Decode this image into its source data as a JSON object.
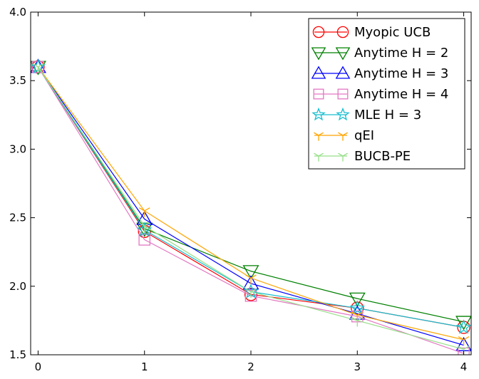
{
  "chart_data": {
    "type": "line",
    "title": "",
    "xlabel": "",
    "ylabel": "",
    "x": [
      0,
      1,
      2,
      3,
      4
    ],
    "xlim": [
      -0.07,
      4.07
    ],
    "ylim": [
      1.5,
      4.0
    ],
    "xticks": [
      "0",
      "1",
      "2",
      "3",
      "4"
    ],
    "yticks": [
      "1.5",
      "2.0",
      "2.5",
      "3.0",
      "3.5",
      "4.0"
    ],
    "grid": false,
    "legend_position": "top-right",
    "series": [
      {
        "name": "Myopic UCB",
        "color": "#ff0000",
        "marker": "circle",
        "values": [
          3.6,
          2.4,
          1.94,
          1.84,
          1.7
        ]
      },
      {
        "name": "Anytime H = 2",
        "color": "#008000",
        "marker": "triangle-down",
        "values": [
          3.6,
          2.42,
          2.11,
          1.91,
          1.74
        ]
      },
      {
        "name": "Anytime H = 3",
        "color": "#0000ff",
        "marker": "triangle-up",
        "values": [
          3.6,
          2.49,
          2.02,
          1.8,
          1.57
        ]
      },
      {
        "name": "Anytime H = 4",
        "color": "#e377c2",
        "marker": "square",
        "values": [
          3.6,
          2.34,
          1.93,
          1.78,
          1.51
        ]
      },
      {
        "name": "MLE H = 3",
        "color": "#17becf",
        "marker": "star",
        "values": [
          3.6,
          2.41,
          1.96,
          1.84,
          1.7
        ]
      },
      {
        "name": "qEI",
        "color": "#ffa500",
        "marker": "tri-down",
        "values": [
          3.6,
          2.55,
          2.06,
          1.79,
          1.61
        ]
      },
      {
        "name": "BUCB-PE",
        "color": "#98df8a",
        "marker": "tri-down",
        "values": [
          3.6,
          2.44,
          1.96,
          1.75,
          1.54
        ]
      }
    ]
  }
}
